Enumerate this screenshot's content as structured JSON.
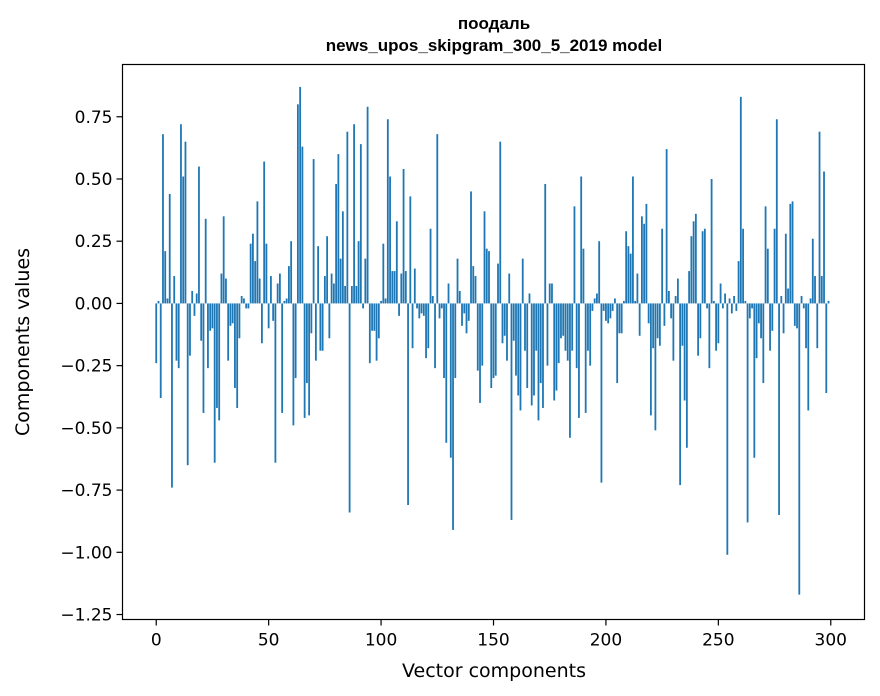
{
  "chart_data": {
    "type": "bar",
    "title_line1": "поодаль",
    "title_line2": "news_upos_skipgram_300_5_2019 model",
    "xlabel": "Vector components",
    "ylabel": "Components values",
    "xlim": [
      -15,
      315
    ],
    "ylim": [
      -1.27,
      0.96
    ],
    "xticks": [
      0,
      50,
      100,
      150,
      200,
      250,
      300
    ],
    "xtick_labels": [
      "0",
      "50",
      "100",
      "150",
      "200",
      "250",
      "300"
    ],
    "yticks": [
      0.75,
      0.5,
      0.25,
      0.0,
      -0.25,
      -0.5,
      -0.75,
      -1.0,
      -1.25
    ],
    "ytick_labels": [
      "0.75",
      "0.50",
      "0.25",
      "0.00",
      "−0.25",
      "−0.50",
      "−0.75",
      "−1.00",
      "−1.25"
    ],
    "bar_color": "#1f77b4",
    "grid": false,
    "values": [
      -0.24,
      0.01,
      -0.38,
      0.68,
      0.21,
      0.02,
      0.44,
      -0.74,
      0.11,
      -0.23,
      -0.26,
      0.72,
      0.51,
      0.65,
      -0.65,
      -0.21,
      0.05,
      -0.05,
      0.04,
      0.55,
      -0.15,
      -0.44,
      0.34,
      -0.26,
      -0.11,
      -0.1,
      -0.64,
      -0.42,
      -0.47,
      0.12,
      0.35,
      0.1,
      -0.23,
      -0.09,
      -0.08,
      -0.34,
      -0.42,
      -0.14,
      0.03,
      0.02,
      -0.02,
      -0.02,
      0.24,
      0.28,
      0.17,
      0.41,
      0.1,
      -0.16,
      0.57,
      0.24,
      -0.1,
      0.11,
      -0.07,
      -0.64,
      0.08,
      0.12,
      -0.44,
      0.01,
      0.02,
      0.15,
      0.25,
      -0.49,
      -0.3,
      0.8,
      0.87,
      0.63,
      -0.46,
      -0.32,
      -0.45,
      -0.12,
      0.58,
      -0.23,
      0.23,
      -0.19,
      -0.19,
      0.11,
      0.27,
      -0.14,
      0.12,
      0.08,
      0.48,
      0.6,
      0.18,
      0.37,
      0.07,
      0.69,
      -0.84,
      0.07,
      0.72,
      0.07,
      0.25,
      0.64,
      -0.02,
      0.18,
      0.79,
      -0.24,
      -0.11,
      -0.11,
      -0.23,
      -0.14,
      0.01,
      0.24,
      0.02,
      0.74,
      0.51,
      0.13,
      0.13,
      0.33,
      -0.05,
      0.12,
      0.54,
      0.13,
      -0.81,
      0.43,
      -0.18,
      0.14,
      -0.02,
      -0.06,
      -0.04,
      -0.05,
      -0.22,
      -0.18,
      0.3,
      0.03,
      -0.26,
      0.68,
      -0.06,
      -0.02,
      -0.3,
      -0.56,
      0.08,
      -0.62,
      -0.91,
      -0.3,
      0.18,
      0.05,
      -0.09,
      -0.04,
      -0.12,
      -0.07,
      0.45,
      0.15,
      0.11,
      -0.27,
      -0.4,
      -0.25,
      0.37,
      0.22,
      0.21,
      -0.34,
      -0.3,
      -0.29,
      0.16,
      0.65,
      -0.16,
      -0.13,
      -0.23,
      0.12,
      -0.87,
      -0.15,
      -0.29,
      -0.37,
      -0.43,
      0.18,
      -0.19,
      -0.34,
      0.04,
      -0.41,
      -0.37,
      -0.19,
      -0.47,
      -0.32,
      -0.42,
      0.48,
      -0.25,
      0.08,
      0.08,
      -0.39,
      -0.35,
      -0.24,
      -0.14,
      -0.13,
      -0.19,
      -0.23,
      -0.54,
      -0.19,
      0.39,
      -0.26,
      -0.46,
      0.51,
      0.22,
      -0.44,
      -0.19,
      -0.25,
      -0.03,
      0.02,
      0.04,
      0.25,
      -0.72,
      -0.03,
      -0.07,
      -0.08,
      -0.06,
      -0.03,
      0.02,
      -0.32,
      -0.12,
      -0.12,
      0.01,
      0.29,
      0.23,
      0.2,
      0.51,
      0.01,
      0.12,
      -0.13,
      0.35,
      0.32,
      0.4,
      -0.08,
      -0.45,
      -0.18,
      -0.51,
      -0.14,
      -0.17,
      0.3,
      -0.09,
      0.62,
      0.05,
      -0.06,
      -0.23,
      0.03,
      0.1,
      -0.73,
      -0.17,
      -0.39,
      -0.58,
      0.13,
      0.27,
      0.33,
      0.36,
      -0.21,
      -0.14,
      0.29,
      0.3,
      -0.02,
      -0.26,
      0.5,
      0.01,
      -0.19,
      -0.16,
      0.08,
      -0.02,
      0.04,
      -1.01,
      0.02,
      -0.04,
      0.03,
      -0.03,
      0.17,
      0.83,
      0.3,
      0.01,
      -0.88,
      -0.06,
      -0.02,
      -0.62,
      -0.22,
      -0.08,
      -0.14,
      -0.32,
      0.39,
      0.22,
      -0.19,
      -0.11,
      0.3,
      0.74,
      -0.85,
      0.03,
      -0.12,
      0.28,
      0.06,
      0.4,
      0.41,
      -0.09,
      -0.1,
      -1.17,
      0.03,
      -0.02,
      -0.18,
      -0.43,
      0.02,
      0.26,
      0.11,
      -0.18,
      0.69,
      0.11,
      0.53,
      -0.36,
      0.01
    ]
  }
}
